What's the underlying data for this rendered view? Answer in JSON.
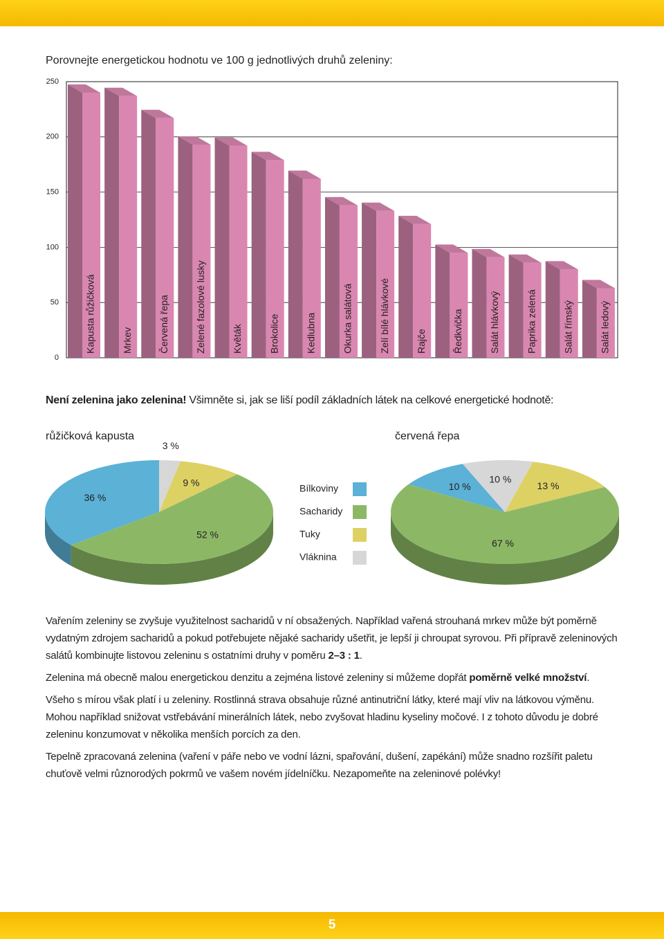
{
  "chart_data": [
    {
      "type": "bar",
      "title": "Porovnejte energetickou hodnotu ve 100 g jednotlivých druhů zeleniny:",
      "categories": [
        "Kapusta růžičková",
        "Mrkev",
        "Červená řepa",
        "Zelené fazolové lusky",
        "Květák",
        "Brokolice",
        "Kedlubna",
        "Okurka salátová",
        "Zelí bílé hlávkové",
        "Rajče",
        "Ředkvička",
        "Salát hlávkový",
        "Paprika zelená",
        "Salát římský",
        "Salát ledový"
      ],
      "values": [
        240,
        237,
        217,
        193,
        192,
        179,
        162,
        138,
        133,
        121,
        95,
        91,
        86,
        80,
        63
      ],
      "color": "#d987b0",
      "ylim": [
        0,
        250
      ],
      "yticks": [
        0,
        50,
        100,
        150,
        200,
        250
      ],
      "grid": true
    },
    {
      "type": "pie",
      "title": "růžičková kapusta",
      "categories": [
        "Bílkoviny",
        "Sacharidy",
        "Tuky",
        "Vláknina"
      ],
      "values": [
        36,
        52,
        9,
        3
      ],
      "value_labels": [
        "36 %",
        "52 %",
        "9 %",
        "3 %"
      ],
      "colors": [
        "#5bb1d6",
        "#8cb866",
        "#ddd164",
        "#d7d7d7"
      ]
    },
    {
      "type": "pie",
      "title": "červená řepa",
      "categories": [
        "Bílkoviny",
        "Sacharidy",
        "Tuky",
        "Vláknina"
      ],
      "values": [
        10,
        67,
        13,
        10
      ],
      "value_labels": [
        "10 %",
        "67 %",
        "13 %",
        "10 %"
      ],
      "colors": [
        "#5bb1d6",
        "#8cb866",
        "#ddd164",
        "#d7d7d7"
      ]
    }
  ],
  "heading": [
    {
      "text": "Není zelenina jako zelenina!",
      "bold": true
    },
    " Všimněte si, jak se liší podíl základních látek na celkové energetické hodnotě:"
  ],
  "paragraphs": [
    [
      "Vařením zeleniny se zvyšuje využitelnost sacharidů v ní obsažených. Například vařená strouhaná mrkev může být poměrně vydatným zdrojem sacharidů a pokud potřebujete nějaké sacharidy ušetřit, je lepší ji chroupat syrovou. Při přípravě zeleninových salátů kombinujte listovou zeleninu s ostatními druhy v poměru ",
      {
        "text": "2–3 : 1",
        "bold": true
      },
      "."
    ],
    [
      "Zelenina má obecně malou energetickou denzitu a zejména listové zeleniny si můžeme dopřát ",
      {
        "text": "poměrně velké množství",
        "bold": true
      },
      "."
    ],
    [
      "Všeho s mírou však platí i u zeleniny. Rostlinná strava obsahuje různé antinutriční látky, které mají vliv na látkovou výměnu. Mohou například snižovat vstřebávání minerálních látek, nebo zvyšovat hladinu kyseliny močové. I z tohoto důvodu je dobré zeleninu konzumovat v několika menších porcích za den."
    ],
    [
      "Tepelně zpracovaná zelenina (vaření v páře nebo ve vodní lázni, spařování, dušení, zapékání) může snadno rozšířit paletu chuťově velmi různorodých pokrmů ve vašem novém jídelníčku. Nezapomeňte na zeleninové polévky!"
    ]
  ],
  "page_number": "5"
}
